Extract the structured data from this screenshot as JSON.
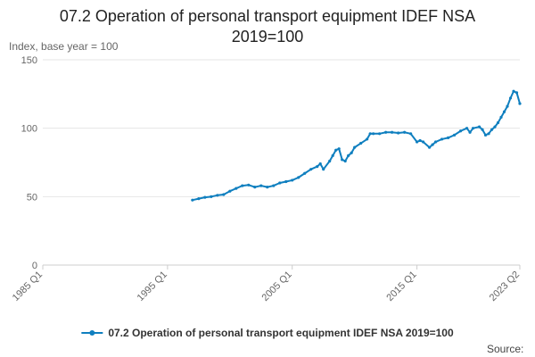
{
  "chart_data": {
    "type": "line",
    "title": "07.2 Operation of personal transport equipment IDEF NSA 2019=100",
    "title_lines": [
      "07.2 Operation of personal transport equipment IDEF NSA",
      "2019=100"
    ],
    "ylabel": "Index, base year = 100",
    "xlabel": "",
    "ylim": [
      0,
      150
    ],
    "yticks": [
      0,
      50,
      100,
      150
    ],
    "xlim": [
      1985.0,
      2023.25
    ],
    "xticks": [
      {
        "label": "1985 Q1",
        "value": 1985.0
      },
      {
        "label": "1995 Q1",
        "value": 1995.0
      },
      {
        "label": "2005 Q1",
        "value": 2005.0
      },
      {
        "label": "2015 Q1",
        "value": 2015.0
      },
      {
        "label": "2023 Q2",
        "value": 2023.25
      }
    ],
    "grid": true,
    "legend_position": "bottom",
    "color": "#0f7fbf",
    "series": [
      {
        "name": "07.2 Operation of personal transport equipment IDEF NSA 2019=100",
        "x": [
          1997.0,
          1997.5,
          1998.0,
          1998.5,
          1999.0,
          1999.5,
          2000.0,
          2000.5,
          2001.0,
          2001.5,
          2002.0,
          2002.5,
          2003.0,
          2003.5,
          2004.0,
          2004.5,
          2005.0,
          2005.5,
          2006.0,
          2006.5,
          2007.0,
          2007.25,
          2007.5,
          2008.0,
          2008.25,
          2008.5,
          2008.75,
          2009.0,
          2009.25,
          2009.5,
          2009.75,
          2010.0,
          2010.5,
          2011.0,
          2011.25,
          2011.5,
          2012.0,
          2012.5,
          2013.0,
          2013.5,
          2014.0,
          2014.5,
          2015.0,
          2015.25,
          2015.5,
          2016.0,
          2016.25,
          2016.5,
          2017.0,
          2017.5,
          2018.0,
          2018.5,
          2019.0,
          2019.25,
          2019.5,
          2020.0,
          2020.25,
          2020.5,
          2020.75,
          2021.0,
          2021.25,
          2021.5,
          2021.75,
          2022.0,
          2022.25,
          2022.5,
          2022.75,
          2023.0,
          2023.25
        ],
        "values": [
          47.5,
          48.5,
          49.5,
          50.0,
          51.0,
          51.5,
          54.0,
          56.0,
          58.0,
          58.5,
          57.0,
          58.0,
          57.0,
          58.0,
          60.0,
          61.0,
          62.0,
          64.0,
          67.0,
          70.0,
          72.0,
          74.0,
          70.0,
          76.0,
          80.0,
          84.0,
          85.0,
          77.0,
          76.0,
          80.0,
          82.0,
          86.0,
          89.0,
          92.0,
          96.0,
          96.0,
          96.0,
          97.0,
          97.0,
          96.5,
          97.0,
          96.0,
          90.0,
          91.0,
          90.0,
          86.0,
          88.0,
          90.0,
          92.0,
          93.0,
          95.0,
          98.0,
          100.0,
          97.0,
          100.0,
          101.0,
          99.0,
          95.0,
          96.0,
          99.0,
          101.0,
          104.0,
          108.0,
          112.0,
          116.0,
          122.0,
          127.0,
          126.0,
          118.0
        ]
      }
    ],
    "source_label": "Source:"
  }
}
